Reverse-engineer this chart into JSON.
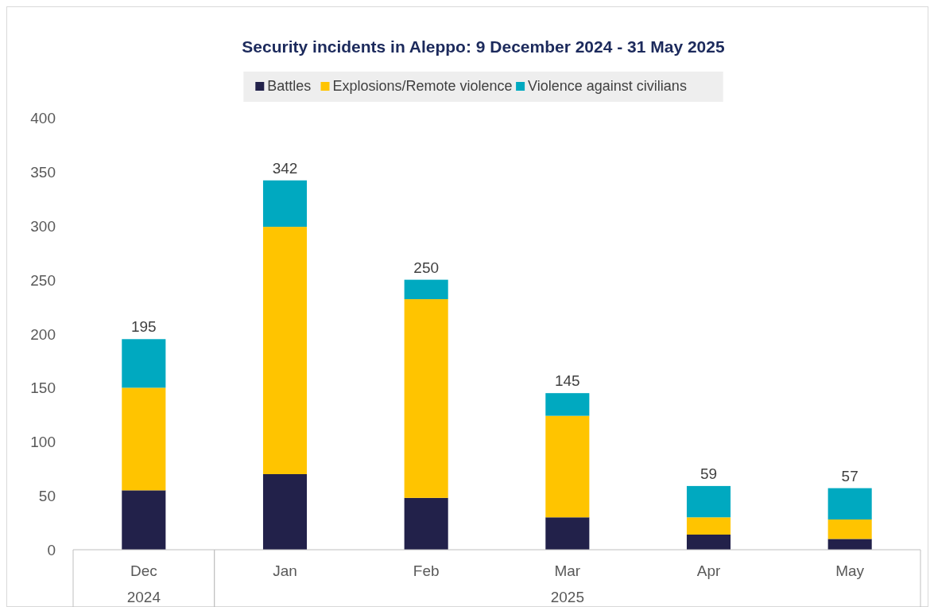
{
  "chart_data": {
    "type": "bar",
    "title": "Security incidents in Aleppo: 9 December 2024 - 31 May 2025",
    "stacked": true,
    "categories": [
      "Dec",
      "Jan",
      "Feb",
      "Mar",
      "Apr",
      "May"
    ],
    "annotations": [
      "2024",
      "2025"
    ],
    "series": [
      {
        "name": "Battles",
        "color": "#22214a",
        "values": [
          55,
          70,
          48,
          30,
          14,
          10
        ]
      },
      {
        "name": "Explosions/Remote violence",
        "color": "#ffc400",
        "values": [
          95,
          229,
          184,
          94,
          16,
          18
        ]
      },
      {
        "name": "Violence against civilians",
        "color": "#00a9c0",
        "values": [
          45,
          43,
          18,
          21,
          29,
          29
        ]
      }
    ],
    "totals": [
      "195",
      "342",
      "250",
      "145",
      "59",
      "57"
    ],
    "ylim": [
      0,
      400
    ],
    "yticks": [
      0,
      50,
      100,
      150,
      200,
      250,
      300,
      350,
      400
    ],
    "grid": false,
    "legend": "top"
  }
}
